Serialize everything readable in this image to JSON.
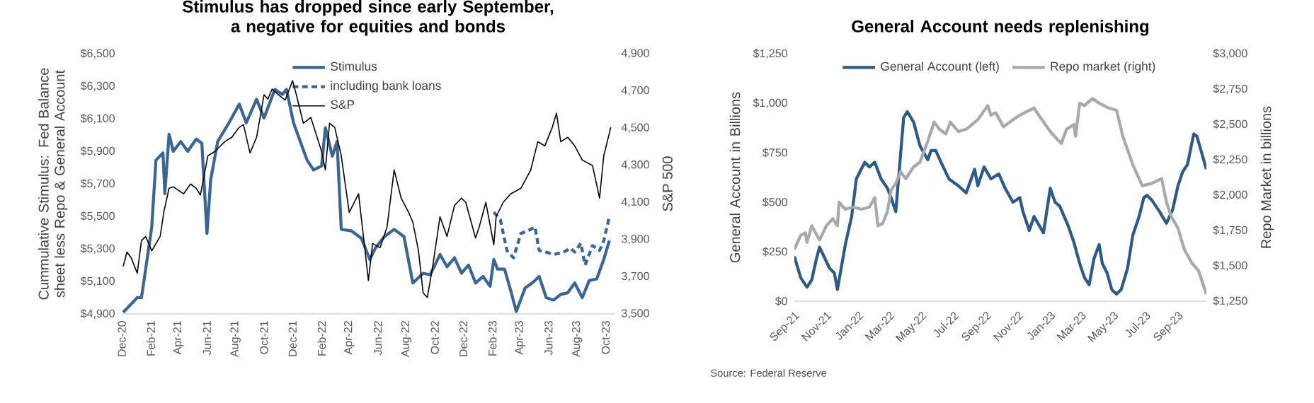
{
  "chart_data": [
    {
      "type": "line",
      "title": "Stimulus has dropped since early September, a negative for equities and bonds",
      "ylabel": "Cummulative Stimulus: Fed Balance sheet less Repo & General Account",
      "y2label": "S&P 500",
      "legend": "top",
      "xlim": [
        "2020-12-01",
        "2023-10-20"
      ],
      "xticks": [
        {
          "value": "2020-12",
          "label": "Dec-20"
        },
        {
          "value": "2021-02",
          "label": "Feb-21"
        },
        {
          "value": "2021-04",
          "label": "Apr-21"
        },
        {
          "value": "2021-06",
          "label": "Jun-21"
        },
        {
          "value": "2021-08",
          "label": "Aug-21"
        },
        {
          "value": "2021-10",
          "label": "Oct-21"
        },
        {
          "value": "2021-12",
          "label": "Dec-21"
        },
        {
          "value": "2022-02",
          "label": "Feb-22"
        },
        {
          "value": "2022-04",
          "label": "Apr-22"
        },
        {
          "value": "2022-06",
          "label": "Jun-22"
        },
        {
          "value": "2022-08",
          "label": "Aug-22"
        },
        {
          "value": "2022-10",
          "label": "Oct-22"
        },
        {
          "value": "2022-12",
          "label": "Dec-22"
        },
        {
          "value": "2023-02",
          "label": "Feb-23"
        },
        {
          "value": "2023-04",
          "label": "Apr-23"
        },
        {
          "value": "2023-06",
          "label": "Jun-23"
        },
        {
          "value": "2023-08",
          "label": "Aug-23"
        },
        {
          "value": "2023-10",
          "label": "Oct-23"
        }
      ],
      "ylim": [
        4900,
        6500
      ],
      "yticks": [
        {
          "value": 4900,
          "label": "$4,900"
        },
        {
          "value": 5100,
          "label": "$5,100"
        },
        {
          "value": 5300,
          "label": "$5,300"
        },
        {
          "value": 5500,
          "label": "$5,500"
        },
        {
          "value": 5700,
          "label": "$5,700"
        },
        {
          "value": 5900,
          "label": "$5,900"
        },
        {
          "value": 6100,
          "label": "$6,100"
        },
        {
          "value": 6300,
          "label": "$6,300"
        },
        {
          "value": 6500,
          "label": "$6,500"
        }
      ],
      "y2lim": [
        3500,
        4900
      ],
      "y2ticks": [
        {
          "value": 3500,
          "label": "3,500"
        },
        {
          "value": 3700,
          "label": "3,700"
        },
        {
          "value": 3900,
          "label": "3,900"
        },
        {
          "value": 4100,
          "label": "4,100"
        },
        {
          "value": 4300,
          "label": "4,300"
        },
        {
          "value": 4500,
          "label": "4,500"
        },
        {
          "value": 4700,
          "label": "4,700"
        },
        {
          "value": 4900,
          "label": "4,900"
        }
      ],
      "series": [
        {
          "name": "Stimulus",
          "color": "#3b6593",
          "line_style": "solid",
          "x": [
            "2020-12-04",
            "2021-01-03",
            "2021-01-12",
            "2021-01-21",
            "2021-02-03",
            "2021-02-12",
            "2021-02-27",
            "2021-03-03",
            "2021-03-12",
            "2021-03-21",
            "2021-04-06",
            "2021-04-21",
            "2021-05-09",
            "2021-05-21",
            "2021-06-01",
            "2021-06-09",
            "2021-06-24",
            "2021-07-18",
            "2021-08-09",
            "2021-08-24",
            "2021-09-15",
            "2021-10-01",
            "2021-10-24",
            "2021-11-09",
            "2021-11-18",
            "2021-12-03",
            "2022-01-01",
            "2022-01-15",
            "2022-02-01",
            "2022-02-09",
            "2022-02-24",
            "2022-03-06",
            "2022-03-15",
            "2022-04-06",
            "2022-04-27",
            "2022-05-15",
            "2022-05-27",
            "2022-06-15",
            "2022-07-06",
            "2022-07-27",
            "2022-08-15",
            "2022-09-06",
            "2022-09-21",
            "2022-10-12",
            "2022-10-27",
            "2022-11-12",
            "2022-11-27",
            "2022-12-12",
            "2022-12-27",
            "2023-01-12",
            "2023-01-27",
            "2023-02-04",
            "2023-02-12",
            "2023-02-27",
            "2023-03-12",
            "2023-03-24",
            "2023-04-12",
            "2023-04-27",
            "2023-05-12",
            "2023-05-27",
            "2023-06-12",
            "2023-06-27",
            "2023-07-12",
            "2023-07-27",
            "2023-08-12",
            "2023-08-27",
            "2023-09-12",
            "2023-09-27",
            "2023-10-09"
          ],
          "values": [
            4910,
            5000,
            5000,
            5175,
            5435,
            5845,
            5890,
            5640,
            6005,
            5900,
            5960,
            5900,
            5975,
            5950,
            5395,
            5725,
            5960,
            6075,
            6190,
            6075,
            6220,
            6105,
            6280,
            6250,
            6280,
            6075,
            5845,
            5785,
            5810,
            6045,
            5870,
            5960,
            5420,
            5410,
            5365,
            5235,
            5305,
            5375,
            5420,
            5375,
            5090,
            5150,
            5140,
            5265,
            5190,
            5245,
            5150,
            5200,
            5090,
            5130,
            5070,
            5235,
            5175,
            5175,
            5045,
            4915,
            5060,
            5090,
            5130,
            5000,
            4985,
            5020,
            5030,
            5090,
            5000,
            5105,
            5115,
            5235,
            5350
          ]
        },
        {
          "name": "including bank loans",
          "color": "#3b6593",
          "line_style": "dashed",
          "x": [
            "2023-02-04",
            "2023-02-18",
            "2023-03-04",
            "2023-03-18",
            "2023-04-03",
            "2023-04-18",
            "2023-05-03",
            "2023-05-12",
            "2023-05-27",
            "2023-06-12",
            "2023-07-03",
            "2023-07-18",
            "2023-07-27",
            "2023-08-09",
            "2023-08-18",
            "2023-09-03",
            "2023-09-18",
            "2023-09-27",
            "2023-10-09"
          ],
          "values": [
            5525,
            5480,
            5290,
            5245,
            5395,
            5410,
            5435,
            5290,
            5280,
            5265,
            5280,
            5305,
            5280,
            5335,
            5200,
            5320,
            5290,
            5350,
            5500
          ]
        },
        {
          "name": "S&P",
          "color": "#000000",
          "line_style": "solid",
          "axis": "y2",
          "x": [
            "2020-12-04",
            "2020-12-12",
            "2020-12-21",
            "2021-01-03",
            "2021-01-12",
            "2021-01-21",
            "2021-02-03",
            "2021-02-21",
            "2021-03-01",
            "2021-03-12",
            "2021-03-21",
            "2021-04-12",
            "2021-04-27",
            "2021-05-09",
            "2021-05-18",
            "2021-06-03",
            "2021-06-18",
            "2021-07-09",
            "2021-07-24",
            "2021-08-09",
            "2021-08-18",
            "2021-09-01",
            "2021-09-15",
            "2021-10-01",
            "2021-10-09",
            "2021-10-18",
            "2021-11-01",
            "2021-11-15",
            "2021-12-01",
            "2021-12-09",
            "2021-12-24",
            "2022-01-09",
            "2022-02-01",
            "2022-02-09",
            "2022-02-18",
            "2022-03-01",
            "2022-03-15",
            "2022-04-01",
            "2022-04-21",
            "2022-05-12",
            "2022-05-21",
            "2022-06-06",
            "2022-06-21",
            "2022-07-06",
            "2022-07-21",
            "2022-08-06",
            "2022-08-15",
            "2022-08-27",
            "2022-09-06",
            "2022-09-15",
            "2022-09-27",
            "2022-10-12",
            "2022-10-27",
            "2022-11-12",
            "2022-11-27",
            "2022-12-06",
            "2022-12-27",
            "2023-01-04",
            "2023-01-18",
            "2023-02-04",
            "2023-02-09",
            "2023-02-24",
            "2023-03-12",
            "2023-04-03",
            "2023-04-24",
            "2023-05-09",
            "2023-05-24",
            "2023-06-09",
            "2023-06-18",
            "2023-06-27",
            "2023-07-12",
            "2023-07-27",
            "2023-08-12",
            "2023-09-03",
            "2023-09-18",
            "2023-09-27",
            "2023-10-12"
          ],
          "values": [
            3757,
            3833,
            3802,
            3719,
            3894,
            3917,
            3840,
            3917,
            4050,
            4176,
            4184,
            4146,
            4199,
            4176,
            4140,
            4351,
            4374,
            4427,
            4450,
            4504,
            4519,
            4366,
            4450,
            4679,
            4656,
            4709,
            4679,
            4650,
            4755,
            4679,
            4526,
            4557,
            4374,
            4275,
            4526,
            4504,
            4351,
            4046,
            4146,
            3680,
            3879,
            3856,
            3970,
            4275,
            4123,
            4046,
            3993,
            3840,
            3612,
            3589,
            3765,
            4023,
            3917,
            4084,
            4123,
            4100,
            3909,
            3970,
            4100,
            3871,
            4023,
            4100,
            4146,
            4176,
            4275,
            4427,
            4404,
            4504,
            4580,
            4427,
            4450,
            4404,
            4328,
            4298,
            4123,
            4351,
            4504
          ]
        }
      ]
    },
    {
      "type": "line",
      "title": "General Account needs replenishing",
      "ylabel": "General Account in Billions",
      "y2label": "Repo Market in billions",
      "legend": "top",
      "annotations": [
        "Source: Federal Reserve"
      ],
      "xlim": [
        "2021-09-01",
        "2023-10-25"
      ],
      "xticks": [
        {
          "value": "2021-09",
          "label": "Sep-21"
        },
        {
          "value": "2021-11",
          "label": "Nov-21"
        },
        {
          "value": "2022-01",
          "label": "Jan-22"
        },
        {
          "value": "2022-03",
          "label": "Mar-22"
        },
        {
          "value": "2022-05",
          "label": "May-22"
        },
        {
          "value": "2022-07",
          "label": "Jul-22"
        },
        {
          "value": "2022-09",
          "label": "Sep-22"
        },
        {
          "value": "2022-11",
          "label": "Nov-22"
        },
        {
          "value": "2023-01",
          "label": "Jan-23"
        },
        {
          "value": "2023-03",
          "label": "Mar-23"
        },
        {
          "value": "2023-05",
          "label": "May-23"
        },
        {
          "value": "2023-07",
          "label": "Jul-23"
        },
        {
          "value": "2023-09",
          "label": "Sep-23"
        }
      ],
      "ylim": [
        0,
        1250
      ],
      "yticks": [
        {
          "value": 0,
          "label": "$0"
        },
        {
          "value": 250,
          "label": "$250"
        },
        {
          "value": 500,
          "label": "$500"
        },
        {
          "value": 750,
          "label": "$750"
        },
        {
          "value": 1000,
          "label": "$1,000"
        },
        {
          "value": 1250,
          "label": "$1,250"
        }
      ],
      "y2lim": [
        1250,
        3000
      ],
      "y2ticks": [
        {
          "value": 1250,
          "label": "$1,250"
        },
        {
          "value": 1500,
          "label": "$1,500"
        },
        {
          "value": 1750,
          "label": "$1,750"
        },
        {
          "value": 2000,
          "label": "$2,000"
        },
        {
          "value": 2250,
          "label": "$2,250"
        },
        {
          "value": 2500,
          "label": "$2,500"
        },
        {
          "value": 2750,
          "label": "$2,750"
        },
        {
          "value": 3000,
          "label": "$3,000"
        }
      ],
      "series": [
        {
          "name": "General Account (left)",
          "color": "#2e5a88",
          "line_style": "solid",
          "x": [
            "2021-09-01",
            "2021-09-13",
            "2021-09-25",
            "2021-10-04",
            "2021-10-13",
            "2021-10-19",
            "2021-11-07",
            "2021-11-16",
            "2021-11-22",
            "2021-12-07",
            "2021-12-19",
            "2021-12-28",
            "2022-01-13",
            "2022-01-22",
            "2022-02-01",
            "2022-02-13",
            "2022-02-25",
            "2022-03-04",
            "2022-03-13",
            "2022-03-28",
            "2022-04-04",
            "2022-04-16",
            "2022-04-28",
            "2022-05-13",
            "2022-05-19",
            "2022-05-28",
            "2022-06-07",
            "2022-06-22",
            "2022-07-10",
            "2022-07-25",
            "2022-08-10",
            "2022-08-16",
            "2022-08-28",
            "2022-09-10",
            "2022-09-25",
            "2022-10-07",
            "2022-10-22",
            "2022-11-04",
            "2022-11-10",
            "2022-11-22",
            "2022-12-01",
            "2022-12-19",
            "2023-01-01",
            "2023-01-10",
            "2023-01-19",
            "2023-02-04",
            "2023-02-15",
            "2023-02-26",
            "2023-03-07",
            "2023-03-16",
            "2023-03-25",
            "2023-04-04",
            "2023-04-10",
            "2023-04-19",
            "2023-04-28",
            "2023-05-07",
            "2023-05-16",
            "2023-05-28",
            "2023-06-07",
            "2023-06-19",
            "2023-06-28",
            "2023-07-04",
            "2023-07-13",
            "2023-07-28",
            "2023-08-10",
            "2023-08-22",
            "2023-09-01",
            "2023-09-10",
            "2023-09-19",
            "2023-10-01",
            "2023-10-07",
            "2023-10-16",
            "2023-10-25"
          ],
          "values": [
            226,
            119,
            71,
            107,
            214,
            273,
            166,
            143,
            59,
            286,
            428,
            618,
            702,
            678,
            702,
            618,
            571,
            523,
            452,
            928,
            957,
            904,
            785,
            714,
            761,
            761,
            702,
            618,
            583,
            547,
            666,
            583,
            678,
            618,
            643,
            571,
            500,
            523,
            452,
            357,
            428,
            345,
            571,
            500,
            480,
            381,
            297,
            190,
            119,
            83,
            214,
            286,
            190,
            143,
            59,
            36,
            59,
            166,
            333,
            428,
            523,
            535,
            511,
            452,
            393,
            464,
            583,
            654,
            690,
            845,
            833,
            750,
            666
          ]
        },
        {
          "name": "Repo market (right)",
          "color": "#a6a9ad",
          "line_style": "solid",
          "axis": "y2",
          "x": [
            "2021-09-01",
            "2021-09-13",
            "2021-09-22",
            "2021-09-25",
            "2021-10-04",
            "2021-10-19",
            "2021-11-01",
            "2021-11-13",
            "2021-11-22",
            "2021-11-25",
            "2021-12-07",
            "2021-12-22",
            "2022-01-07",
            "2022-01-22",
            "2022-02-01",
            "2022-02-07",
            "2022-02-16",
            "2022-02-25",
            "2022-03-04",
            "2022-03-13",
            "2022-03-22",
            "2022-04-01",
            "2022-04-16",
            "2022-04-28",
            "2022-05-13",
            "2022-05-25",
            "2022-06-04",
            "2022-06-16",
            "2022-06-25",
            "2022-07-10",
            "2022-07-25",
            "2022-08-16",
            "2022-09-04",
            "2022-09-10",
            "2022-09-19",
            "2022-10-04",
            "2022-10-22",
            "2022-11-04",
            "2022-12-01",
            "2022-12-13",
            "2023-01-01",
            "2023-01-13",
            "2023-01-22",
            "2023-02-01",
            "2023-02-15",
            "2023-02-18",
            "2023-02-26",
            "2023-03-07",
            "2023-03-22",
            "2023-04-04",
            "2023-04-22",
            "2023-05-07",
            "2023-05-19",
            "2023-06-07",
            "2023-06-25",
            "2023-07-13",
            "2023-08-01",
            "2023-08-10",
            "2023-08-19",
            "2023-09-01",
            "2023-09-13",
            "2023-09-28",
            "2023-10-10",
            "2023-10-25"
          ],
          "values": [
            1616,
            1716,
            1733,
            1666,
            1783,
            1683,
            1783,
            1833,
            1783,
            1950,
            1900,
            1916,
            1900,
            1916,
            1983,
            1783,
            1800,
            1883,
            2033,
            2083,
            2166,
            2116,
            2200,
            2233,
            2383,
            2516,
            2466,
            2433,
            2516,
            2450,
            2466,
            2533,
            2633,
            2566,
            2583,
            2483,
            2533,
            2566,
            2616,
            2550,
            2450,
            2400,
            2366,
            2466,
            2500,
            2416,
            2650,
            2633,
            2683,
            2650,
            2616,
            2600,
            2416,
            2216,
            2066,
            2083,
            2116,
            1950,
            1850,
            1766,
            1616,
            1516,
            1466,
            1300
          ]
        }
      ]
    }
  ]
}
